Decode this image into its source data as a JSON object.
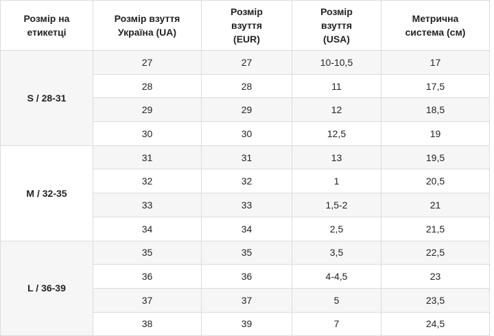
{
  "table": {
    "header": [
      [
        "Розмір на",
        "етикетці"
      ],
      [
        "Розмір взуття",
        "Україна (UA)"
      ],
      [
        "Розмір",
        "взуття",
        "(EUR)"
      ],
      [
        "Розмір",
        "взуття",
        "(USA)"
      ],
      [
        "Метрична",
        "система (см)"
      ]
    ],
    "groups": [
      {
        "label": "S / 28-31",
        "rows": [
          [
            "27",
            "27",
            "10-10,5",
            "17"
          ],
          [
            "28",
            "28",
            "11",
            "17,5"
          ],
          [
            "29",
            "29",
            "12",
            "18,5"
          ],
          [
            "30",
            "30",
            "12,5",
            "19"
          ]
        ]
      },
      {
        "label": "M / 32-35",
        "rows": [
          [
            "31",
            "31",
            "13",
            "19,5"
          ],
          [
            "32",
            "32",
            "1",
            "20,5"
          ],
          [
            "33",
            "33",
            "1,5-2",
            "21"
          ],
          [
            "34",
            "34",
            "2,5",
            "21,5"
          ]
        ]
      },
      {
        "label": "L / 36-39",
        "rows": [
          [
            "35",
            "35",
            "3,5",
            "22,5"
          ],
          [
            "36",
            "36",
            "4-4,5",
            "23"
          ],
          [
            "37",
            "37",
            "5",
            "23,5"
          ],
          [
            "38",
            "39",
            "7",
            "24,5"
          ]
        ]
      }
    ]
  }
}
